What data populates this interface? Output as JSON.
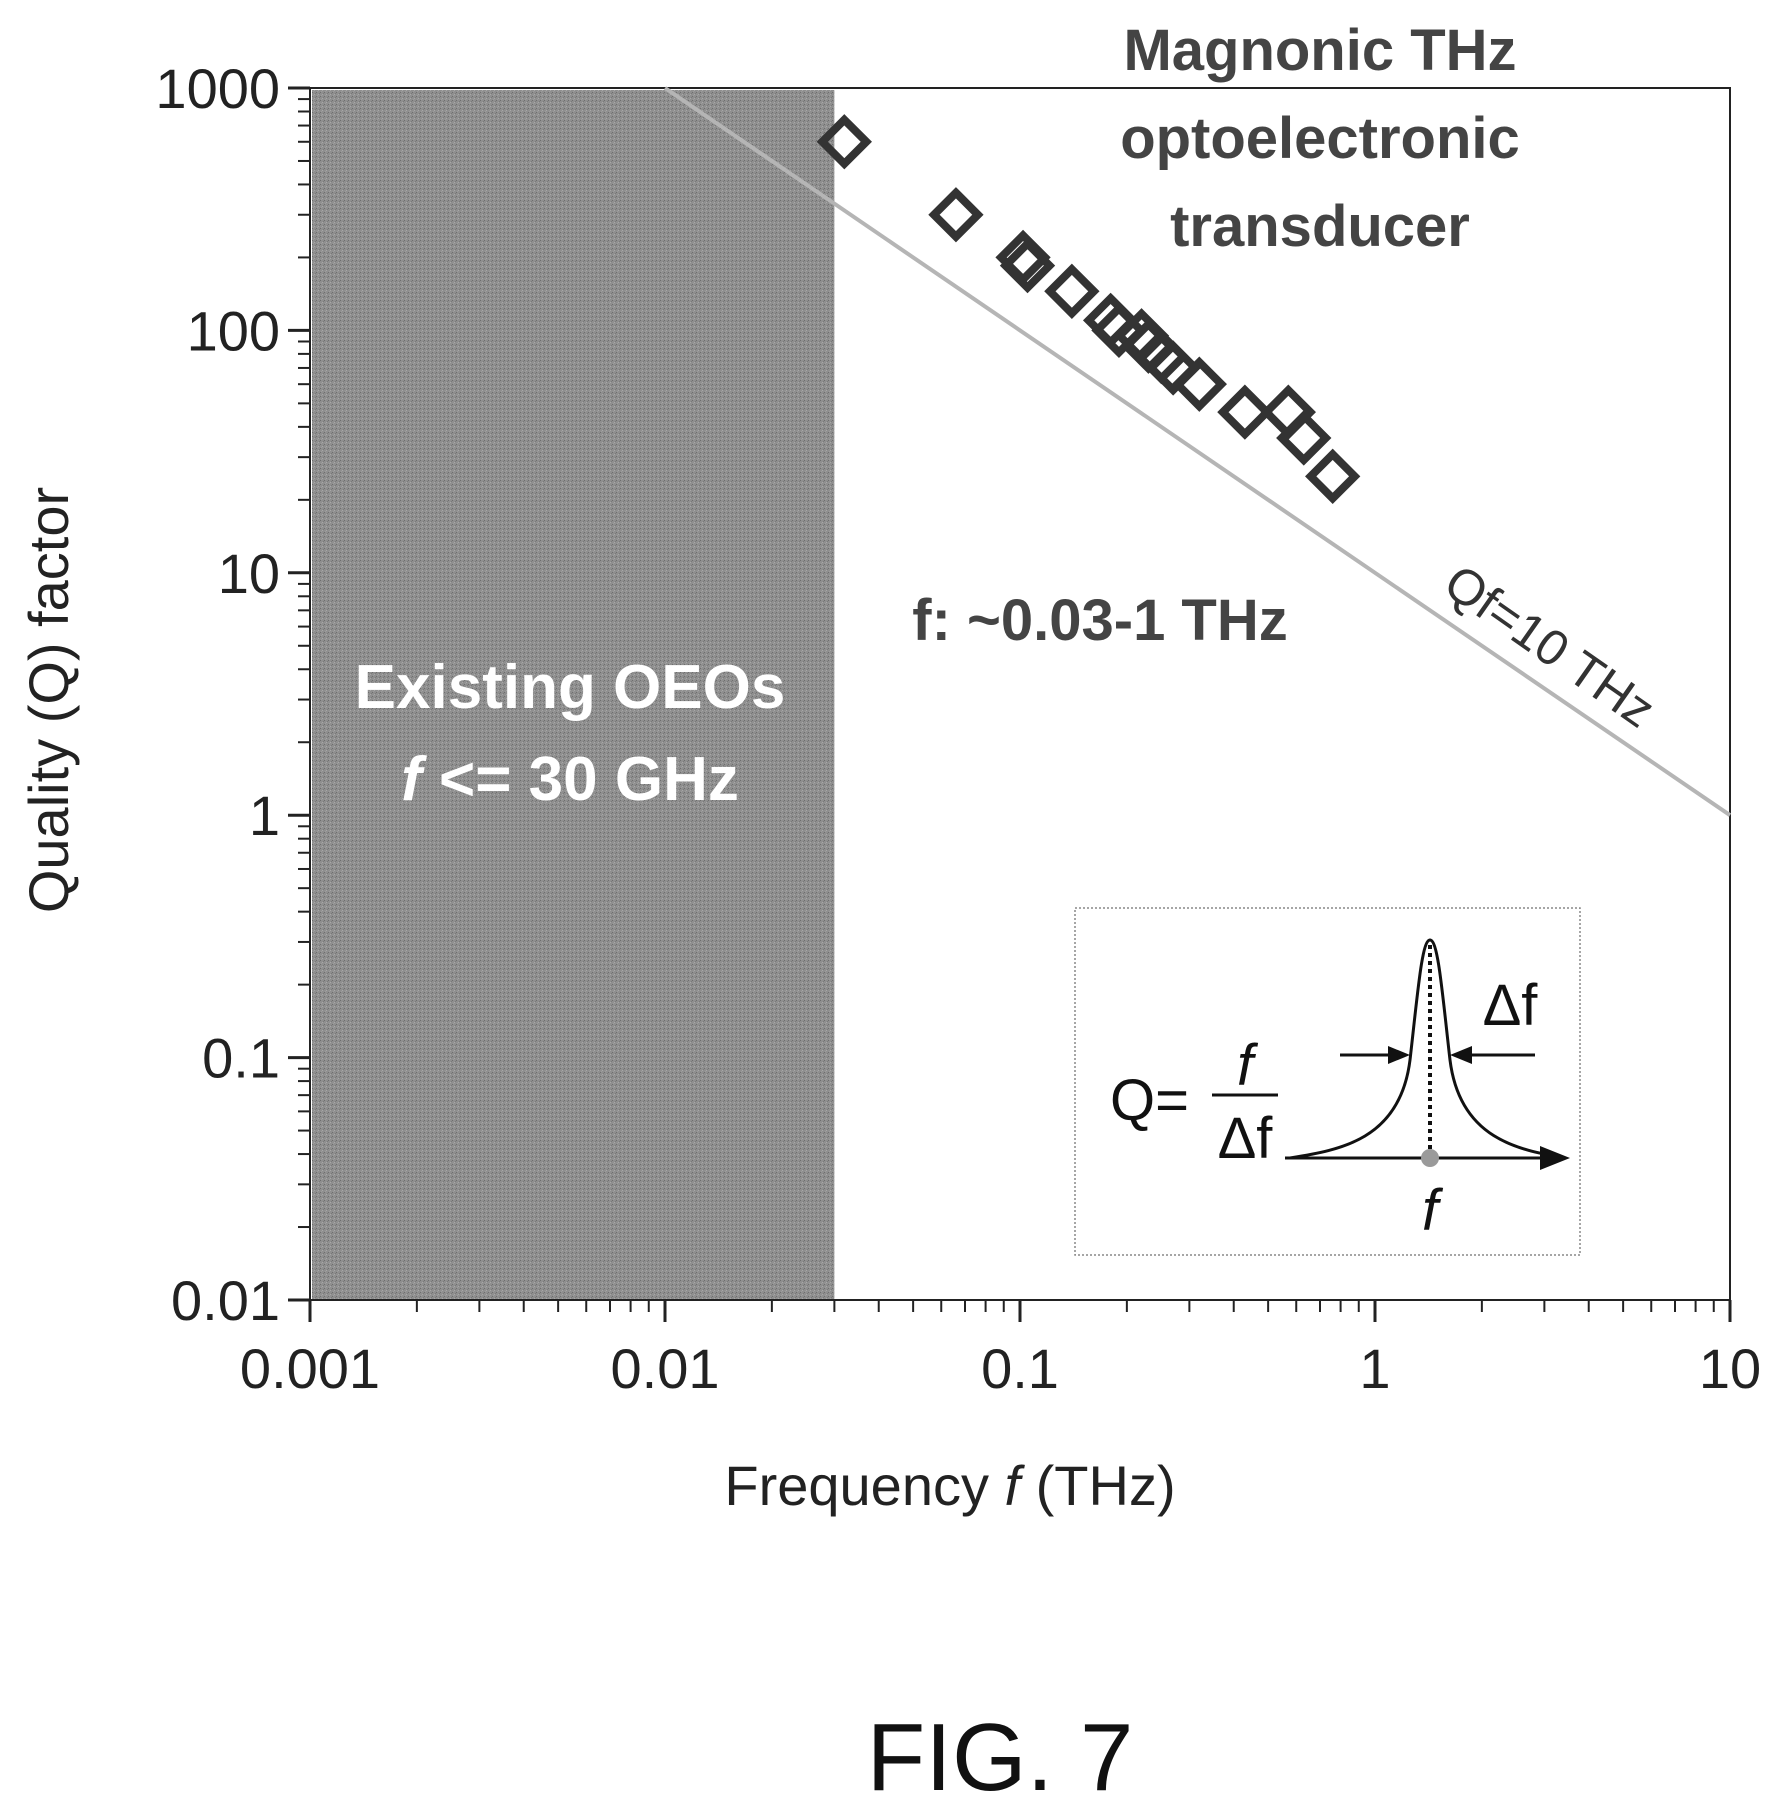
{
  "chart_data": {
    "type": "scatter",
    "xlabel_prefix": "Frequency ",
    "xlabel_var": "f",
    "xlabel_unit": " (THz)",
    "ylabel": "Quality (Q) factor",
    "x_scale": "log",
    "y_scale": "log",
    "xlim": [
      0.001,
      10
    ],
    "ylim": [
      0.01,
      1000
    ],
    "x_ticks": [
      "0.001",
      "0.01",
      "0.1",
      "1",
      "10"
    ],
    "y_ticks": [
      "0.01",
      "0.1",
      "1",
      "10",
      "100",
      "1000"
    ],
    "grid": false,
    "marker": "open-diamond",
    "points": [
      {
        "x": 0.032,
        "y": 600
      },
      {
        "x": 0.066,
        "y": 300
      },
      {
        "x": 0.102,
        "y": 200
      },
      {
        "x": 0.105,
        "y": 185
      },
      {
        "x": 0.14,
        "y": 145
      },
      {
        "x": 0.18,
        "y": 110
      },
      {
        "x": 0.19,
        "y": 100
      },
      {
        "x": 0.22,
        "y": 95
      },
      {
        "x": 0.23,
        "y": 86
      },
      {
        "x": 0.25,
        "y": 78
      },
      {
        "x": 0.27,
        "y": 70
      },
      {
        "x": 0.32,
        "y": 60
      },
      {
        "x": 0.43,
        "y": 46
      },
      {
        "x": 0.57,
        "y": 46
      },
      {
        "x": 0.63,
        "y": 36
      },
      {
        "x": 0.76,
        "y": 25
      }
    ],
    "reference_line": {
      "label": "Qf=10 THz",
      "Qf": 10,
      "x_range": [
        0.01,
        10
      ]
    },
    "shaded_region": {
      "x_range": [
        0.001,
        0.03
      ],
      "line1": "Existing OEOs",
      "line2_var": "f",
      "line2_rest": " <= 30 GHz"
    },
    "annotations": {
      "magnonic": [
        "Magnonic THz",
        "optoelectronic",
        "transducer"
      ],
      "range": "f: ~0.03-1 THz"
    },
    "inset": {
      "q_lhs": "Q=",
      "numerator": "f",
      "denominator": "Δf",
      "width_label": "Δf",
      "peak_label": "f"
    }
  },
  "figure_label": "FIG. 7",
  "colors": {
    "shade": "#8a8a8a",
    "marker": "#333333",
    "ref_line": "#b5b5b5",
    "axis": "#222222"
  }
}
